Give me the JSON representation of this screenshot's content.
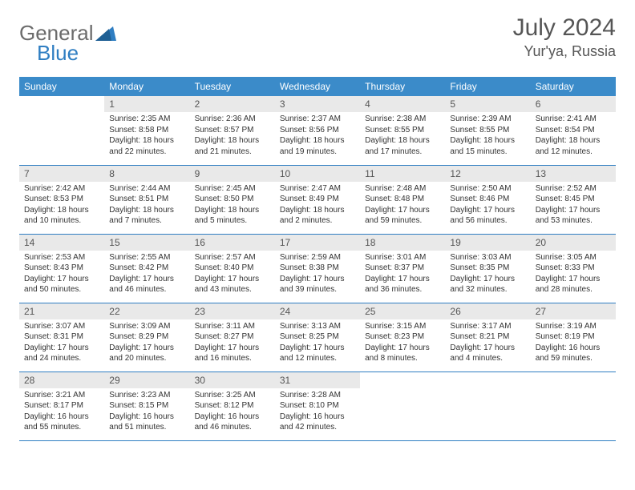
{
  "brand": {
    "name_a": "General",
    "name_b": "Blue"
  },
  "title": {
    "month": "July 2024",
    "location": "Yur'ya, Russia"
  },
  "colors": {
    "header_bg": "#3b8bc9",
    "header_fg": "#ffffff",
    "daynum_bg": "#e9e9e9",
    "rule": "#2f7ec2",
    "text": "#333333",
    "title_text": "#555555"
  },
  "weekdays": [
    "Sunday",
    "Monday",
    "Tuesday",
    "Wednesday",
    "Thursday",
    "Friday",
    "Saturday"
  ],
  "weeks": [
    [
      {
        "day": "",
        "lines": []
      },
      {
        "day": "1",
        "lines": [
          "Sunrise: 2:35 AM",
          "Sunset: 8:58 PM",
          "Daylight: 18 hours and 22 minutes."
        ]
      },
      {
        "day": "2",
        "lines": [
          "Sunrise: 2:36 AM",
          "Sunset: 8:57 PM",
          "Daylight: 18 hours and 21 minutes."
        ]
      },
      {
        "day": "3",
        "lines": [
          "Sunrise: 2:37 AM",
          "Sunset: 8:56 PM",
          "Daylight: 18 hours and 19 minutes."
        ]
      },
      {
        "day": "4",
        "lines": [
          "Sunrise: 2:38 AM",
          "Sunset: 8:55 PM",
          "Daylight: 18 hours and 17 minutes."
        ]
      },
      {
        "day": "5",
        "lines": [
          "Sunrise: 2:39 AM",
          "Sunset: 8:55 PM",
          "Daylight: 18 hours and 15 minutes."
        ]
      },
      {
        "day": "6",
        "lines": [
          "Sunrise: 2:41 AM",
          "Sunset: 8:54 PM",
          "Daylight: 18 hours and 12 minutes."
        ]
      }
    ],
    [
      {
        "day": "7",
        "lines": [
          "Sunrise: 2:42 AM",
          "Sunset: 8:53 PM",
          "Daylight: 18 hours and 10 minutes."
        ]
      },
      {
        "day": "8",
        "lines": [
          "Sunrise: 2:44 AM",
          "Sunset: 8:51 PM",
          "Daylight: 18 hours and 7 minutes."
        ]
      },
      {
        "day": "9",
        "lines": [
          "Sunrise: 2:45 AM",
          "Sunset: 8:50 PM",
          "Daylight: 18 hours and 5 minutes."
        ]
      },
      {
        "day": "10",
        "lines": [
          "Sunrise: 2:47 AM",
          "Sunset: 8:49 PM",
          "Daylight: 18 hours and 2 minutes."
        ]
      },
      {
        "day": "11",
        "lines": [
          "Sunrise: 2:48 AM",
          "Sunset: 8:48 PM",
          "Daylight: 17 hours and 59 minutes."
        ]
      },
      {
        "day": "12",
        "lines": [
          "Sunrise: 2:50 AM",
          "Sunset: 8:46 PM",
          "Daylight: 17 hours and 56 minutes."
        ]
      },
      {
        "day": "13",
        "lines": [
          "Sunrise: 2:52 AM",
          "Sunset: 8:45 PM",
          "Daylight: 17 hours and 53 minutes."
        ]
      }
    ],
    [
      {
        "day": "14",
        "lines": [
          "Sunrise: 2:53 AM",
          "Sunset: 8:43 PM",
          "Daylight: 17 hours and 50 minutes."
        ]
      },
      {
        "day": "15",
        "lines": [
          "Sunrise: 2:55 AM",
          "Sunset: 8:42 PM",
          "Daylight: 17 hours and 46 minutes."
        ]
      },
      {
        "day": "16",
        "lines": [
          "Sunrise: 2:57 AM",
          "Sunset: 8:40 PM",
          "Daylight: 17 hours and 43 minutes."
        ]
      },
      {
        "day": "17",
        "lines": [
          "Sunrise: 2:59 AM",
          "Sunset: 8:38 PM",
          "Daylight: 17 hours and 39 minutes."
        ]
      },
      {
        "day": "18",
        "lines": [
          "Sunrise: 3:01 AM",
          "Sunset: 8:37 PM",
          "Daylight: 17 hours and 36 minutes."
        ]
      },
      {
        "day": "19",
        "lines": [
          "Sunrise: 3:03 AM",
          "Sunset: 8:35 PM",
          "Daylight: 17 hours and 32 minutes."
        ]
      },
      {
        "day": "20",
        "lines": [
          "Sunrise: 3:05 AM",
          "Sunset: 8:33 PM",
          "Daylight: 17 hours and 28 minutes."
        ]
      }
    ],
    [
      {
        "day": "21",
        "lines": [
          "Sunrise: 3:07 AM",
          "Sunset: 8:31 PM",
          "Daylight: 17 hours and 24 minutes."
        ]
      },
      {
        "day": "22",
        "lines": [
          "Sunrise: 3:09 AM",
          "Sunset: 8:29 PM",
          "Daylight: 17 hours and 20 minutes."
        ]
      },
      {
        "day": "23",
        "lines": [
          "Sunrise: 3:11 AM",
          "Sunset: 8:27 PM",
          "Daylight: 17 hours and 16 minutes."
        ]
      },
      {
        "day": "24",
        "lines": [
          "Sunrise: 3:13 AM",
          "Sunset: 8:25 PM",
          "Daylight: 17 hours and 12 minutes."
        ]
      },
      {
        "day": "25",
        "lines": [
          "Sunrise: 3:15 AM",
          "Sunset: 8:23 PM",
          "Daylight: 17 hours and 8 minutes."
        ]
      },
      {
        "day": "26",
        "lines": [
          "Sunrise: 3:17 AM",
          "Sunset: 8:21 PM",
          "Daylight: 17 hours and 4 minutes."
        ]
      },
      {
        "day": "27",
        "lines": [
          "Sunrise: 3:19 AM",
          "Sunset: 8:19 PM",
          "Daylight: 16 hours and 59 minutes."
        ]
      }
    ],
    [
      {
        "day": "28",
        "lines": [
          "Sunrise: 3:21 AM",
          "Sunset: 8:17 PM",
          "Daylight: 16 hours and 55 minutes."
        ]
      },
      {
        "day": "29",
        "lines": [
          "Sunrise: 3:23 AM",
          "Sunset: 8:15 PM",
          "Daylight: 16 hours and 51 minutes."
        ]
      },
      {
        "day": "30",
        "lines": [
          "Sunrise: 3:25 AM",
          "Sunset: 8:12 PM",
          "Daylight: 16 hours and 46 minutes."
        ]
      },
      {
        "day": "31",
        "lines": [
          "Sunrise: 3:28 AM",
          "Sunset: 8:10 PM",
          "Daylight: 16 hours and 42 minutes."
        ]
      },
      {
        "day": "",
        "lines": []
      },
      {
        "day": "",
        "lines": []
      },
      {
        "day": "",
        "lines": []
      }
    ]
  ]
}
